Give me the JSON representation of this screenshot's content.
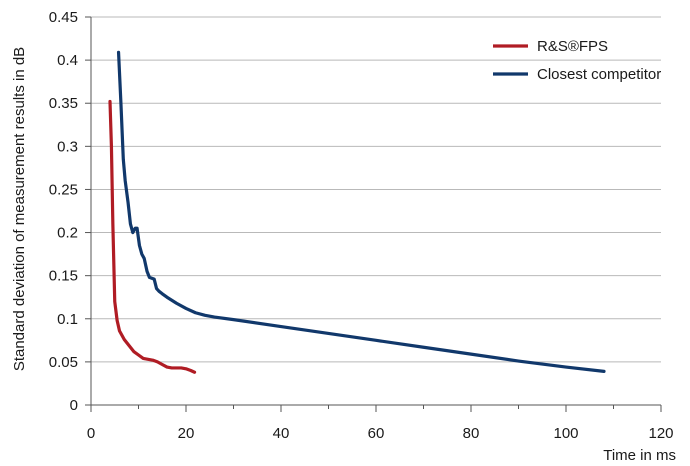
{
  "chart_data": {
    "type": "line",
    "xlabel": "Time in ms",
    "ylabel": "Standard deviation of measurement results in dB",
    "xlim": [
      0,
      120
    ],
    "ylim": [
      0,
      0.45
    ],
    "x_ticks": [
      0,
      20,
      40,
      60,
      80,
      100,
      120
    ],
    "y_ticks": [
      0,
      0.05,
      0.1,
      0.15,
      0.2,
      0.25,
      0.3,
      0.35,
      0.4,
      0.45
    ],
    "x_tick_labels": [
      "0",
      "20",
      "40",
      "60",
      "80",
      "100",
      "120"
    ],
    "y_tick_labels": [
      "0",
      "0.05",
      "0.1",
      "0.15",
      "0.2",
      "0.25",
      "0.3",
      "0.35",
      "0.4",
      "0.45"
    ],
    "grid": "horizontal",
    "legend_position": "top-right",
    "series": [
      {
        "name": "R&S®FPS",
        "color": "#b01c24",
        "x": [
          4.0,
          4.3,
          4.6,
          5.0,
          5.5,
          6.0,
          7.0,
          8.0,
          9.0,
          10.0,
          11.0,
          12.0,
          13.0,
          14.0,
          15.0,
          16.0,
          17.0,
          18.0,
          19.0,
          20.0,
          21.0,
          21.8
        ],
        "y": [
          0.352,
          0.3,
          0.21,
          0.12,
          0.098,
          0.086,
          0.076,
          0.069,
          0.062,
          0.058,
          0.054,
          0.053,
          0.052,
          0.05,
          0.047,
          0.044,
          0.043,
          0.043,
          0.043,
          0.042,
          0.04,
          0.038
        ]
      },
      {
        "name": "Closest competitor",
        "color": "#11386b",
        "x": [
          5.8,
          6.3,
          6.8,
          7.2,
          7.8,
          8.3,
          8.8,
          9.3,
          9.7,
          10.2,
          10.7,
          11.2,
          11.8,
          12.3,
          12.8,
          13.3,
          13.8,
          14.3,
          15.0,
          16.0,
          18.0,
          20.0,
          22.0,
          24.0,
          26.0,
          30.0,
          40.0,
          50.0,
          60.0,
          70.0,
          80.0,
          90.0,
          100.0,
          108.0
        ],
        "y": [
          0.409,
          0.35,
          0.285,
          0.26,
          0.235,
          0.21,
          0.2,
          0.205,
          0.205,
          0.185,
          0.175,
          0.17,
          0.155,
          0.148,
          0.147,
          0.146,
          0.135,
          0.132,
          0.129,
          0.125,
          0.118,
          0.112,
          0.107,
          0.104,
          0.102,
          0.099,
          0.091,
          0.083,
          0.075,
          0.067,
          0.059,
          0.051,
          0.044,
          0.039
        ]
      }
    ]
  }
}
